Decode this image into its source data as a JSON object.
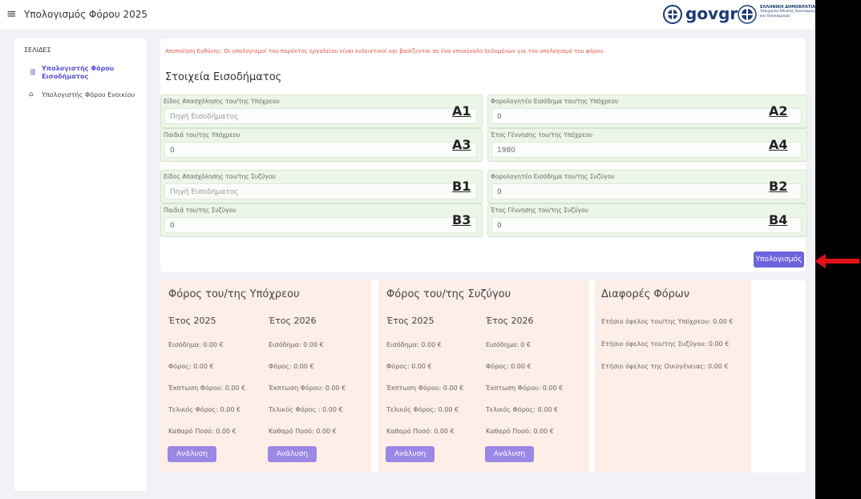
{
  "header": {
    "title": "Υπολογισμός Φόρου 2025",
    "gov_logo": "govgr",
    "republic": [
      "ΕΛΛΗΝΙΚΗ ΔΗΜΟΚΡΑΤΙΑ",
      "Υπουργείο Εθνικής Οικονομίας",
      "και Οικονομικών"
    ]
  },
  "sidebar": {
    "heading": "ΣΕΛΙΔΕΣ",
    "items": [
      "Υπολογιστής Φόρου Εισοδήματος",
      "Υπολογιστής Φόρου Ενοικίου"
    ]
  },
  "form": {
    "disclaimer": "Αποποίηση Ευθύνης: Οι υπολογισμοί του παρόντος εργαλείου είναι ενδεικτικοί και βασίζονται σε ένα υποσύνολο δεδομένων για τον υπολογισμό του φόρου.",
    "title": "Στοιχεία Εισοδήματος",
    "fields": [
      {
        "label": "Είδος Απασχόλησης του/της Υπόχρεου",
        "value": "Πηγή Εισοδήματος",
        "annotation": "A1"
      },
      {
        "label": "Φορολογητέο Εισόδημα του/της Υπόχρεου",
        "value": "0",
        "annotation": "A2"
      },
      {
        "label": "Παιδιά του/της Υπόχρεου",
        "value": "0",
        "annotation": "A3"
      },
      {
        "label": "Έτος Γέννησης του/της Υπόχρεου",
        "value": "1980",
        "annotation": "A4"
      },
      {
        "label": "Είδος Απασχόλησης του/της Συζύγου",
        "value": "Πηγή Εισοδήματος",
        "annotation": "B1"
      },
      {
        "label": "Φορολογητέο Εισόδημα του/της Συζύγου",
        "value": "0",
        "annotation": "B2"
      },
      {
        "label": "Παιδιά του/της Συζύγου",
        "value": "0",
        "annotation": "B3"
      },
      {
        "label": "Έτος Γέννησης του/της Συζύγου",
        "value": "0",
        "annotation": "B4"
      }
    ],
    "button": "Υπολογισμός"
  },
  "results": [
    {
      "title": "Φόρος του/της Υπόχρεου",
      "columns": [
        {
          "year": "Έτος 2025",
          "lines": [
            "Εισόδημα: 0.00 €",
            "Φόρος: 0.00 €",
            "Έκπτωση Φόρου: 0.00 €",
            "Τελικός Φόρος: 0.00 €",
            "Καθαρό Ποσό: 0.00 €"
          ],
          "button": "Ανάλυση"
        },
        {
          "year": "Έτος 2026",
          "lines": [
            "Εισόδημα: 0.00 €",
            "Φόρος: 0.00 €",
            "Έκπτωση Φόρου: 0.00 €",
            "Τελικός Φόρος : 0.00 €",
            "Καθαρό Ποσό: 0.00 €"
          ],
          "button": "Ανάλυση"
        }
      ]
    },
    {
      "title": "Φόρος του/της Συζύγου",
      "columns": [
        {
          "year": "Έτος 2025",
          "lines": [
            "Εισόδημα: 0.00 €",
            "Φόρος: 0.00 €",
            "Έκπτωση Φόρου: 0.00 €",
            "Τελικός Φόρος: 0.00 €",
            "Καθαρό Ποσό: 0.00 €"
          ],
          "button": "Ανάλυση"
        },
        {
          "year": "Έτος 2026",
          "lines": [
            "Εισόδημα: 0 €",
            "Φόρος: 0.00 €",
            "Έκπτωση Φόρου: 0.00 €",
            "Τελικός Φόρος: 0.00 €",
            "Καθαρό Ποσό: 0.00 €"
          ],
          "button": "Ανάλυση"
        }
      ]
    }
  ],
  "differences": {
    "title": "Διαφορές Φόρων",
    "lines": [
      "Ετήσιο όφελος του/της Υπόχρεου: 0.00 €",
      "Ετήσιο όφελος του/της Συζύγου: 0.00 €",
      "Ετήσιο όφελος της Οικογένειας: 0.00 €"
    ]
  }
}
